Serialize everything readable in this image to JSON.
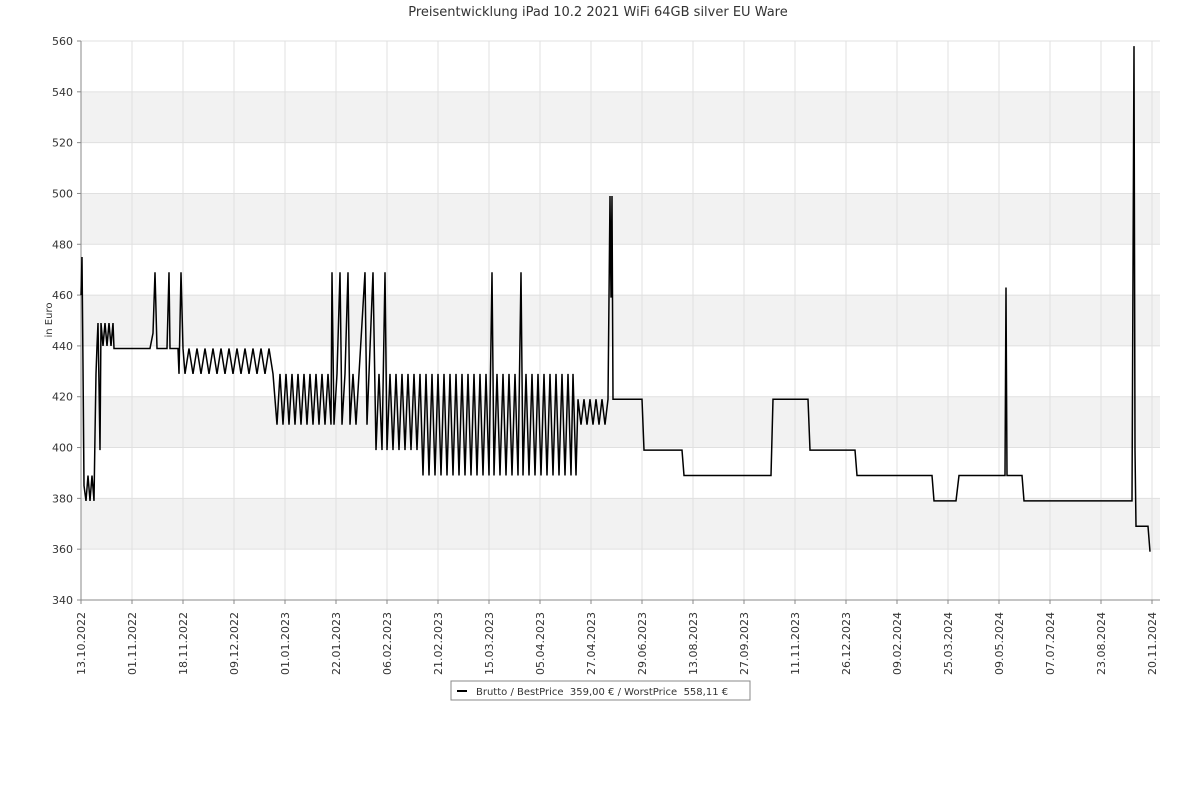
{
  "chart_data": {
    "type": "line",
    "title": "Preisentwicklung iPad 10.2 2021 WiFi 64GB silver EU Ware",
    "y_label": "in Euro",
    "xlim": [
      0,
      1079
    ],
    "xticks": [
      {
        "value": 0,
        "label": "13.10.2022"
      },
      {
        "value": 51,
        "label": "01.11.2022"
      },
      {
        "value": 102,
        "label": "18.11.2022"
      },
      {
        "value": 153,
        "label": "09.12.2022"
      },
      {
        "value": 204,
        "label": "01.01.2023"
      },
      {
        "value": 255,
        "label": "22.01.2023"
      },
      {
        "value": 306,
        "label": "06.02.2023"
      },
      {
        "value": 357,
        "label": "21.02.2023"
      },
      {
        "value": 408,
        "label": "15.03.2023"
      },
      {
        "value": 459,
        "label": "05.04.2023"
      },
      {
        "value": 510,
        "label": "27.04.2023"
      },
      {
        "value": 561,
        "label": "29.06.2023"
      },
      {
        "value": 612,
        "label": "13.08.2023"
      },
      {
        "value": 663,
        "label": "27.09.2023"
      },
      {
        "value": 714,
        "label": "11.11.2023"
      },
      {
        "value": 765,
        "label": "26.12.2023"
      },
      {
        "value": 816,
        "label": "09.02.2024"
      },
      {
        "value": 867,
        "label": "25.03.2024"
      },
      {
        "value": 918,
        "label": "09.05.2024"
      },
      {
        "value": 969,
        "label": "07.07.2024"
      },
      {
        "value": 1020,
        "label": "23.08.2024"
      },
      {
        "value": 1071,
        "label": "20.11.2024"
      }
    ],
    "ylim": [
      340,
      560
    ],
    "yticks": [
      340,
      360,
      380,
      400,
      420,
      440,
      460,
      480,
      500,
      520,
      540,
      560
    ],
    "grid": true,
    "legend": "bottom",
    "series": [
      {
        "name": "Brutto / BestPrice  359,00 € / WorstPrice  558,11 €",
        "color": "#000000",
        "x": [
          0,
          1,
          2,
          3,
          5,
          7,
          9,
          11,
          13,
          14,
          15,
          16,
          17,
          18,
          19,
          20,
          22,
          24,
          26,
          28,
          30,
          32,
          33,
          69,
          72,
          74,
          76,
          86,
          88,
          89,
          97,
          98,
          100,
          102,
          104,
          108,
          112,
          116,
          120,
          124,
          128,
          132,
          136,
          140,
          144,
          148,
          152,
          156,
          160,
          164,
          168,
          172,
          176,
          180,
          184,
          188,
          192,
          194,
          196,
          199,
          202,
          205,
          208,
          211,
          214,
          217,
          220,
          223,
          226,
          229,
          232,
          235,
          238,
          241,
          244,
          247,
          250,
          251,
          253,
          256,
          259,
          261,
          264,
          267,
          269,
          272,
          275,
          278,
          284,
          286,
          288,
          292,
          295,
          298,
          301,
          304,
          306,
          309,
          312,
          315,
          318,
          321,
          324,
          327,
          330,
          333,
          336,
          339,
          342,
          345,
          348,
          351,
          354,
          357,
          360,
          363,
          366,
          369,
          372,
          375,
          378,
          381,
          384,
          387,
          390,
          393,
          396,
          399,
          402,
          405,
          408,
          411,
          413,
          416,
          419,
          422,
          425,
          428,
          431,
          434,
          437,
          440,
          442,
          445,
          448,
          451,
          454,
          457,
          460,
          463,
          466,
          469,
          472,
          475,
          478,
          481,
          484,
          487,
          490,
          492,
          495,
          497,
          500,
          503,
          506,
          509,
          512,
          515,
          518,
          521,
          524,
          527,
          528,
          529,
          530,
          531,
          532,
          561,
          563,
          601,
          603,
          690,
          692,
          727,
          729,
          774,
          776,
          851,
          853,
          875,
          878,
          924,
          925,
          926,
          941,
          943,
          1051,
          1052,
          1053,
          1054,
          1055,
          1067,
          1069
        ],
        "values": [
          460,
          475,
          432,
          385,
          379,
          389,
          379,
          389,
          379,
          405,
          429,
          440,
          449,
          425,
          399,
          449,
          440,
          449,
          440,
          449,
          440,
          449,
          439,
          439,
          445,
          469,
          439,
          439,
          469,
          439,
          439,
          429,
          469,
          439,
          429,
          439,
          429,
          439,
          429,
          439,
          429,
          439,
          429,
          439,
          429,
          439,
          429,
          439,
          429,
          439,
          429,
          439,
          429,
          439,
          429,
          439,
          429,
          419,
          409,
          429,
          409,
          429,
          409,
          429,
          409,
          429,
          409,
          429,
          409,
          429,
          409,
          429,
          409,
          429,
          409,
          429,
          409,
          469,
          409,
          429,
          469,
          409,
          429,
          469,
          409,
          429,
          409,
          429,
          469,
          409,
          429,
          469,
          399,
          429,
          399,
          469,
          399,
          429,
          399,
          429,
          399,
          429,
          399,
          429,
          399,
          429,
          399,
          429,
          389,
          429,
          389,
          429,
          389,
          429,
          389,
          429,
          389,
          429,
          389,
          429,
          389,
          429,
          389,
          429,
          389,
          429,
          389,
          429,
          389,
          429,
          389,
          469,
          389,
          429,
          389,
          429,
          389,
          429,
          389,
          429,
          389,
          469,
          389,
          429,
          389,
          429,
          389,
          429,
          389,
          429,
          389,
          429,
          389,
          429,
          389,
          429,
          389,
          429,
          389,
          429,
          389,
          419,
          409,
          419,
          409,
          419,
          409,
          419,
          409,
          419,
          409,
          419,
          459,
          499,
          459,
          499,
          419,
          419,
          399,
          399,
          389,
          389,
          419,
          419,
          399,
          399,
          389,
          389,
          379,
          379,
          389,
          389,
          463,
          389,
          389,
          379,
          379,
          469,
          558,
          399,
          369,
          369,
          359
        ]
      }
    ]
  }
}
